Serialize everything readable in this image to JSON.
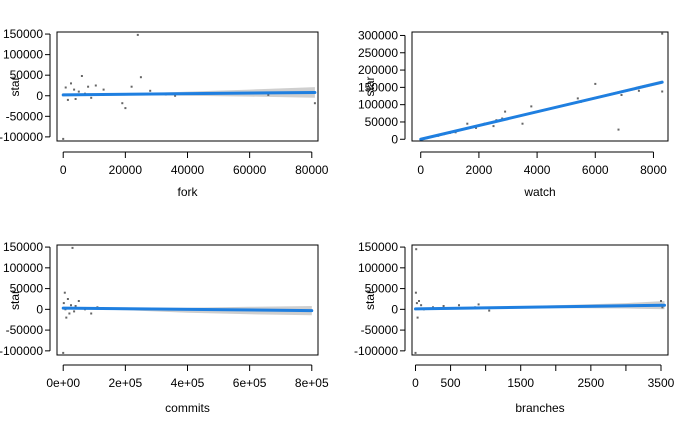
{
  "chart_data": [
    {
      "type": "scatter",
      "xlabel": "fork",
      "ylabel": "star",
      "xlim": [
        -2000,
        82000
      ],
      "ylim": [
        -110000,
        155000
      ],
      "x_ticks": [
        0,
        20000,
        40000,
        60000,
        80000
      ],
      "x_tick_labels": [
        "0",
        "20000",
        "40000",
        "60000",
        "80000"
      ],
      "y_ticks": [
        -100000,
        -50000,
        0,
        50000,
        100000,
        150000
      ],
      "y_tick_labels": [
        "-100000",
        "-50000",
        "0",
        "50000",
        "100000",
        "150000"
      ],
      "points": [
        {
          "x": 0,
          "y": -105000
        },
        {
          "x": 24000,
          "y": 148000
        },
        {
          "x": 25000,
          "y": 45000
        },
        {
          "x": 6000,
          "y": 48000
        },
        {
          "x": 10500,
          "y": 25000
        },
        {
          "x": 13000,
          "y": 15000
        },
        {
          "x": 19000,
          "y": -18000
        },
        {
          "x": 20000,
          "y": -30000
        },
        {
          "x": 22000,
          "y": 22000
        },
        {
          "x": 28000,
          "y": 12000
        },
        {
          "x": 30500,
          "y": 5000
        },
        {
          "x": 33000,
          "y": 3000
        },
        {
          "x": 36000,
          "y": 0
        },
        {
          "x": 66000,
          "y": 2000
        },
        {
          "x": 81000,
          "y": -18000
        },
        {
          "x": 800,
          "y": 20000
        },
        {
          "x": 1500,
          "y": -10000
        },
        {
          "x": 2500,
          "y": 30000
        },
        {
          "x": 3500,
          "y": 15000
        },
        {
          "x": 4000,
          "y": -8000
        },
        {
          "x": 5000,
          "y": 10000
        },
        {
          "x": 7000,
          "y": 5000
        },
        {
          "x": 8000,
          "y": 22000
        },
        {
          "x": 9000,
          "y": -5000
        }
      ],
      "fit": {
        "x0": 0,
        "y0": 2000,
        "x1": 81000,
        "y1": 8000
      },
      "band": {
        "x": [
          0,
          20000,
          40000,
          60000,
          81000
        ],
        "lo": [
          -1500,
          1500,
          0,
          -2000,
          -5000
        ],
        "hi": [
          4500,
          4500,
          10000,
          15000,
          21000
        ]
      }
    },
    {
      "type": "scatter",
      "xlabel": "watch",
      "ylabel": "star",
      "xlim": [
        -300,
        8500
      ],
      "ylim": [
        -5000,
        310000
      ],
      "x_ticks": [
        0,
        2000,
        4000,
        6000,
        8000
      ],
      "x_tick_labels": [
        "0",
        "2000",
        "4000",
        "6000",
        "8000"
      ],
      "y_ticks": [
        0,
        50000,
        100000,
        150000,
        200000,
        250000,
        300000
      ],
      "y_tick_labels": [
        "0",
        "50000",
        "100000",
        "150000",
        "200000",
        "250000",
        "300000"
      ],
      "points": [
        {
          "x": 8300,
          "y": 305000
        },
        {
          "x": 8300,
          "y": 138000
        },
        {
          "x": 7500,
          "y": 140000
        },
        {
          "x": 6900,
          "y": 128000
        },
        {
          "x": 6800,
          "y": 28000
        },
        {
          "x": 6000,
          "y": 160000
        },
        {
          "x": 5500,
          "y": 108000
        },
        {
          "x": 5400,
          "y": 118000
        },
        {
          "x": 3800,
          "y": 95000
        },
        {
          "x": 3500,
          "y": 45000
        },
        {
          "x": 2900,
          "y": 80000
        },
        {
          "x": 2800,
          "y": 60000
        },
        {
          "x": 2600,
          "y": 55000
        },
        {
          "x": 2500,
          "y": 38000
        },
        {
          "x": 2200,
          "y": 45000
        },
        {
          "x": 1900,
          "y": 33000
        },
        {
          "x": 1600,
          "y": 45000
        },
        {
          "x": 1400,
          "y": 28000
        },
        {
          "x": 1200,
          "y": 20000
        },
        {
          "x": 1000,
          "y": 18000
        },
        {
          "x": 800,
          "y": 15000
        },
        {
          "x": 600,
          "y": 10000
        },
        {
          "x": 400,
          "y": 8000
        },
        {
          "x": 200,
          "y": 3000
        }
      ],
      "fit": {
        "x0": 0,
        "y0": 0,
        "x1": 8300,
        "y1": 165000
      },
      "band": {
        "x": [
          0,
          4000,
          8300
        ],
        "lo": [
          -1500,
          78000,
          160000
        ],
        "hi": [
          1500,
          82000,
          170000
        ]
      }
    },
    {
      "type": "scatter",
      "xlabel": "commits",
      "ylabel": "star",
      "xlim": [
        -20000,
        820000
      ],
      "ylim": [
        -110000,
        155000
      ],
      "x_ticks": [
        0,
        200000,
        400000,
        600000,
        800000
      ],
      "x_tick_labels": [
        "0e+00",
        "2e+05",
        "4e+05",
        "6e+05",
        "8e+05"
      ],
      "y_ticks": [
        -100000,
        -50000,
        0,
        50000,
        100000,
        150000
      ],
      "y_tick_labels": [
        "-100000",
        "-50000",
        "0",
        "50000",
        "100000",
        "150000"
      ],
      "points": [
        {
          "x": 0,
          "y": -105000
        },
        {
          "x": 30000,
          "y": 148000
        },
        {
          "x": 90000,
          "y": -10000
        },
        {
          "x": 50000,
          "y": 20000
        },
        {
          "x": 5000,
          "y": 40000
        },
        {
          "x": 10000,
          "y": -20000
        },
        {
          "x": 15000,
          "y": 25000
        },
        {
          "x": 20000,
          "y": -10000
        },
        {
          "x": 25000,
          "y": 10000
        },
        {
          "x": 35000,
          "y": -5000
        },
        {
          "x": 40000,
          "y": 8000
        },
        {
          "x": 70000,
          "y": 0
        },
        {
          "x": 110000,
          "y": 5000
        },
        {
          "x": 800000,
          "y": -4000
        },
        {
          "x": 2000,
          "y": 15000
        },
        {
          "x": 7000,
          "y": 0
        }
      ],
      "fit": {
        "x0": 0,
        "y0": 3000,
        "x1": 800000,
        "y1": -3000
      },
      "band": {
        "x": [
          0,
          200000,
          400000,
          600000,
          800000
        ],
        "lo": [
          1500,
          -2000,
          -8000,
          -12000,
          -14000
        ],
        "hi": [
          4500,
          4000,
          4000,
          6000,
          8000
        ]
      }
    },
    {
      "type": "scatter",
      "xlabel": "branches",
      "ylabel": "star",
      "xlim": [
        -50,
        3600
      ],
      "ylim": [
        -110000,
        155000
      ],
      "x_ticks": [
        0,
        500,
        1000,
        1500,
        2000,
        2500,
        3000,
        3500
      ],
      "x_tick_labels": [
        "0",
        "500",
        "",
        "1500",
        "",
        "2500",
        "",
        "3500"
      ],
      "y_ticks": [
        -100000,
        -50000,
        0,
        50000,
        100000,
        150000
      ],
      "y_tick_labels": [
        "-100000",
        "-50000",
        "0",
        "50000",
        "100000",
        "150000"
      ],
      "points": [
        {
          "x": 0,
          "y": -105000
        },
        {
          "x": 10,
          "y": 145000
        },
        {
          "x": 5,
          "y": 40000
        },
        {
          "x": 20,
          "y": 15000
        },
        {
          "x": 30,
          "y": -20000
        },
        {
          "x": 50,
          "y": 20000
        },
        {
          "x": 80,
          "y": 10000
        },
        {
          "x": 120,
          "y": 0
        },
        {
          "x": 250,
          "y": 5000
        },
        {
          "x": 400,
          "y": 8000
        },
        {
          "x": 620,
          "y": 10000
        },
        {
          "x": 850,
          "y": 5000
        },
        {
          "x": 900,
          "y": 12000
        },
        {
          "x": 1050,
          "y": -3000
        },
        {
          "x": 3500,
          "y": 20000
        },
        {
          "x": 3520,
          "y": 5000
        }
      ],
      "fit": {
        "x0": 0,
        "y0": 1000,
        "x1": 3550,
        "y1": 10000
      },
      "band": {
        "x": [
          0,
          1000,
          2000,
          3000,
          3550
        ],
        "lo": [
          -1000,
          1000,
          3000,
          2000,
          0
        ],
        "hi": [
          3000,
          5000,
          10000,
          15000,
          20000
        ]
      }
    }
  ],
  "colors": {
    "points": "#666666",
    "fit": "#1f7fe0",
    "band": "#cfcfcf",
    "axis": "#000000"
  }
}
